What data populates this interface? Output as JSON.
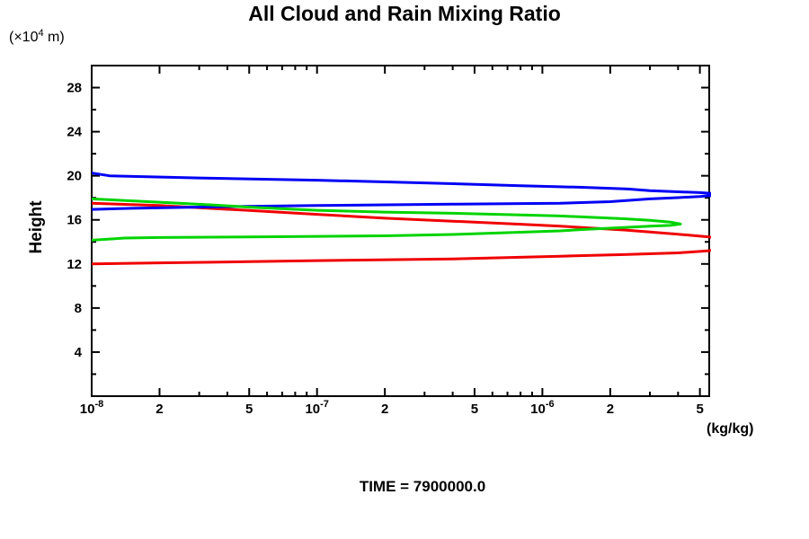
{
  "title": "All Cloud and Rain Mixing Ratio",
  "labels": {
    "y_unit_prefix": "(×10",
    "y_unit_exp": "4",
    "y_unit_suffix": " m)",
    "y_axis": "Height",
    "x_unit": "(kg/kg)",
    "time": "TIME = 7900000.0"
  },
  "colors": {
    "axis": "#000000",
    "blue": "#0000f5",
    "green": "#00d400",
    "red": "#f00000"
  },
  "chart_data": {
    "type": "line",
    "title": "All Cloud and Rain Mixing Ratio",
    "xlabel": "(kg/kg)",
    "ylabel": "Height (x10^4 m)",
    "x_scale": "log",
    "y_scale": "linear",
    "xlim": [
      1e-08,
      5.5e-06
    ],
    "ylim": [
      0,
      30
    ],
    "grid": false,
    "legend": null,
    "x_major_ticks": [
      {
        "v": 1e-08,
        "base": "10",
        "exp": "-8"
      },
      {
        "v": 2e-08,
        "base": "2"
      },
      {
        "v": 5e-08,
        "base": "5"
      },
      {
        "v": 1e-07,
        "base": "10",
        "exp": "-7"
      },
      {
        "v": 2e-07,
        "base": "2"
      },
      {
        "v": 5e-07,
        "base": "5"
      },
      {
        "v": 1e-06,
        "base": "10",
        "exp": "-6"
      },
      {
        "v": 2e-06,
        "base": "2"
      },
      {
        "v": 5e-06,
        "base": "5"
      }
    ],
    "x_minor_ticks": [
      3e-08,
      4e-08,
      6e-08,
      7e-08,
      8e-08,
      9e-08,
      3e-07,
      4e-07,
      6e-07,
      7e-07,
      8e-07,
      9e-07,
      3e-06,
      4e-06
    ],
    "y_major_ticks": [
      4,
      8,
      12,
      16,
      20,
      24,
      28
    ],
    "y_minor_ticks": [
      2,
      6,
      10,
      14,
      18,
      22,
      26
    ],
    "series": [
      {
        "name": "red",
        "color": "#f00000",
        "points": [
          [
            1e-08,
            17.5
          ],
          [
            2e-08,
            17.3
          ],
          [
            5e-08,
            16.85
          ],
          [
            1e-07,
            16.5
          ],
          [
            2e-07,
            16.15
          ],
          [
            4e-07,
            15.88
          ],
          [
            8e-07,
            15.6
          ],
          [
            1.2e-06,
            15.42
          ],
          [
            2.3e-06,
            15.08
          ],
          [
            3e-06,
            14.9
          ],
          [
            4e-06,
            14.7
          ],
          [
            5.5e-06,
            14.45
          ],
          [
            7.5e-06,
            13.8
          ],
          [
            5.5e-06,
            13.2
          ],
          [
            4e-06,
            13.0
          ],
          [
            2.3e-06,
            12.85
          ],
          [
            1.2e-06,
            12.7
          ],
          [
            4e-07,
            12.45
          ],
          [
            1e-07,
            12.3
          ],
          [
            5e-08,
            12.2
          ],
          [
            2e-08,
            12.1
          ],
          [
            1e-08,
            12.0
          ]
        ]
      },
      {
        "name": "blue",
        "color": "#0000f5",
        "points": [
          [
            1e-08,
            20.25
          ],
          [
            1.2e-08,
            20.0
          ],
          [
            3e-08,
            19.8
          ],
          [
            1e-07,
            19.6
          ],
          [
            3e-07,
            19.35
          ],
          [
            8e-07,
            19.1
          ],
          [
            1.5e-06,
            18.95
          ],
          [
            2.4e-06,
            18.8
          ],
          [
            3e-06,
            18.65
          ],
          [
            4e-06,
            18.55
          ],
          [
            5e-06,
            18.47
          ],
          [
            6.5e-06,
            18.3
          ],
          [
            5e-06,
            18.12
          ],
          [
            4e-06,
            18.02
          ],
          [
            3e-06,
            17.9
          ],
          [
            2e-06,
            17.65
          ],
          [
            1.2e-06,
            17.5
          ],
          [
            4e-07,
            17.42
          ],
          [
            1e-07,
            17.3
          ],
          [
            4e-08,
            17.2
          ],
          [
            1.5e-08,
            17.05
          ],
          [
            1e-08,
            16.95
          ]
        ]
      },
      {
        "name": "green",
        "color": "#00d400",
        "points": [
          [
            1e-08,
            17.9
          ],
          [
            2e-08,
            17.6
          ],
          [
            3.5e-08,
            17.35
          ],
          [
            5e-08,
            17.15
          ],
          [
            1e-07,
            16.87
          ],
          [
            2e-07,
            16.7
          ],
          [
            4e-07,
            16.6
          ],
          [
            8e-07,
            16.45
          ],
          [
            1.2e-06,
            16.35
          ],
          [
            2.3e-06,
            16.1
          ],
          [
            3e-06,
            15.95
          ],
          [
            3.7e-06,
            15.8
          ],
          [
            4.1e-06,
            15.62
          ],
          [
            3.7e-06,
            15.5
          ],
          [
            3e-06,
            15.42
          ],
          [
            2.3e-06,
            15.3
          ],
          [
            1.5e-06,
            15.12
          ],
          [
            1.2e-06,
            15.0
          ],
          [
            8e-07,
            14.88
          ],
          [
            4e-07,
            14.67
          ],
          [
            2e-07,
            14.55
          ],
          [
            1e-07,
            14.5
          ],
          [
            5e-08,
            14.45
          ],
          [
            2e-08,
            14.4
          ],
          [
            1.4e-08,
            14.35
          ],
          [
            1e-08,
            14.15
          ]
        ]
      }
    ]
  }
}
